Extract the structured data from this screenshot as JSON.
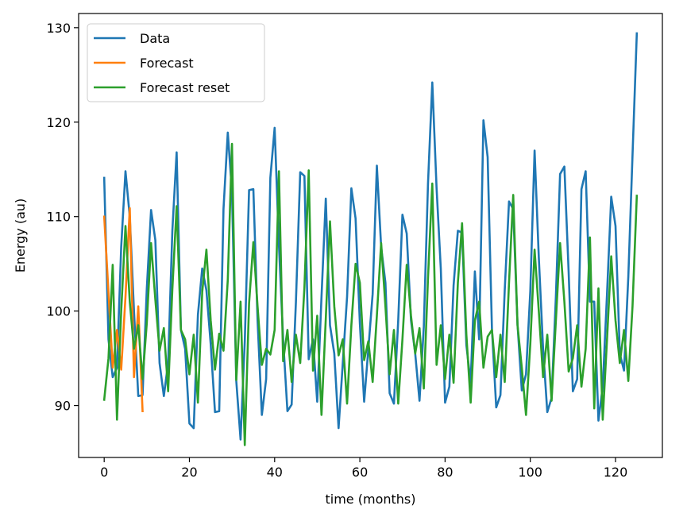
{
  "chart_data": {
    "type": "line",
    "xlabel": "time (months)",
    "ylabel": "Energy (au)",
    "xlim": [
      -6,
      131
    ],
    "ylim": [
      84.5,
      131.5
    ],
    "xticks": [
      0,
      20,
      40,
      60,
      80,
      100,
      120
    ],
    "yticks": [
      90,
      100,
      110,
      120,
      130
    ],
    "legend_position": "top-left",
    "grid": false,
    "series": [
      {
        "name": "Data",
        "color": "#1f77b4",
        "x": [
          0,
          1,
          2,
          3,
          4,
          5,
          6,
          7,
          8,
          9,
          10,
          11,
          12,
          13,
          14,
          15,
          16,
          17,
          18,
          19,
          20,
          21,
          22,
          23,
          24,
          25,
          26,
          27,
          28,
          29,
          30,
          31,
          32,
          33,
          34,
          35,
          36,
          37,
          38,
          39,
          40,
          41,
          42,
          43,
          44,
          45,
          46,
          47,
          48,
          49,
          50,
          51,
          52,
          53,
          54,
          55,
          56,
          57,
          58,
          59,
          60,
          61,
          62,
          63,
          64,
          65,
          66,
          67,
          68,
          69,
          70,
          71,
          72,
          73,
          74,
          75,
          76,
          77,
          78,
          79,
          80,
          81,
          82,
          83,
          84,
          85,
          86,
          87,
          88,
          89,
          90,
          91,
          92,
          93,
          94,
          95,
          96,
          97,
          98,
          99,
          100,
          101,
          102,
          103,
          104,
          105,
          106,
          107,
          108,
          109,
          110,
          111,
          112,
          113,
          114,
          115,
          116,
          117,
          118,
          119,
          120,
          121,
          122,
          123,
          124,
          125
        ],
        "y": [
          114.1,
          97.0,
          93.0,
          94.0,
          106.8,
          114.8,
          110.0,
          100.0,
          91.0,
          91.1,
          102.3,
          110.7,
          107.5,
          94.5,
          91.0,
          94.5,
          108.5,
          116.8,
          98.0,
          96.0,
          88.1,
          87.6,
          99.6,
          104.5,
          102.2,
          96.5,
          89.3,
          89.4,
          110.8,
          118.9,
          112.6,
          92.6,
          86.4,
          96.8,
          112.8,
          112.9,
          99.0,
          89.0,
          92.8,
          114.1,
          119.4,
          107.0,
          97.0,
          89.4,
          90.1,
          101.0,
          114.7,
          114.3,
          94.9,
          97.0,
          90.4,
          101.5,
          111.9,
          98.5,
          95.5,
          87.6,
          94.5,
          101.5,
          113.0,
          109.8,
          98.7,
          90.4,
          96.0,
          101.8,
          115.4,
          106.8,
          103.0,
          91.3,
          90.2,
          99.0,
          110.2,
          108.2,
          99.0,
          95.5,
          90.5,
          98.3,
          113.5,
          124.2,
          113.0,
          104.5,
          90.3,
          92.0,
          102.7,
          108.5,
          108.3,
          96.4,
          92.4,
          104.2,
          97.0,
          120.2,
          116.3,
          98.1,
          89.8,
          91.1,
          102.2,
          111.6,
          110.8,
          98.6,
          91.6,
          93.3,
          102.1,
          117.0,
          105.7,
          96.0,
          89.3,
          90.8,
          101.5,
          114.5,
          115.3,
          104.1,
          91.5,
          92.8,
          112.9,
          114.8,
          101.0,
          101.0,
          88.4,
          92.0,
          101.8,
          112.1,
          109.0,
          95.5,
          93.7,
          103.6,
          116.5,
          129.4
        ]
      },
      {
        "name": "Forecast",
        "color": "#ff7f0e",
        "x": [
          0,
          1,
          2,
          3,
          4,
          5,
          6,
          7,
          8,
          9
        ],
        "y": [
          110.0,
          102.0,
          94.0,
          98.0,
          93.8,
          101.5,
          110.9,
          93.0,
          100.5,
          89.4
        ]
      },
      {
        "name": "Forecast reset",
        "color": "#2ca02c",
        "x": [
          0,
          1,
          2,
          3,
          4,
          5,
          6,
          7,
          8,
          9,
          10,
          11,
          12,
          13,
          14,
          15,
          16,
          17,
          18,
          19,
          20,
          21,
          22,
          23,
          24,
          25,
          26,
          27,
          28,
          29,
          30,
          31,
          32,
          33,
          34,
          35,
          36,
          37,
          38,
          39,
          40,
          41,
          42,
          43,
          44,
          45,
          46,
          47,
          48,
          49,
          50,
          51,
          52,
          53,
          54,
          55,
          56,
          57,
          58,
          59,
          60,
          61,
          62,
          63,
          64,
          65,
          66,
          67,
          68,
          69,
          70,
          71,
          72,
          73,
          74,
          75,
          76,
          77,
          78,
          79,
          80,
          81,
          82,
          83,
          84,
          85,
          86,
          87,
          88,
          89,
          90,
          91,
          92,
          93,
          94,
          95,
          96,
          97,
          98,
          99,
          100,
          101,
          102,
          103,
          104,
          105,
          106,
          107,
          108,
          109,
          110,
          111,
          112,
          113,
          114,
          115,
          116,
          117,
          118,
          119,
          120,
          121,
          122,
          123,
          124,
          125
        ],
        "y": [
          90.6,
          95.0,
          104.9,
          88.5,
          100.0,
          109.0,
          101.0,
          96.0,
          98.5,
          92.8,
          98.7,
          107.2,
          101.2,
          95.8,
          98.2,
          91.5,
          102.3,
          111.1,
          98.0,
          97.0,
          93.3,
          97.5,
          90.3,
          102.0,
          106.5,
          99.0,
          93.8,
          97.6,
          95.8,
          103.3,
          117.7,
          92.7,
          101.0,
          85.8,
          100.8,
          107.3,
          100.5,
          94.3,
          96.0,
          95.4,
          98.0,
          114.8,
          94.7,
          98.0,
          92.5,
          97.5,
          94.5,
          102.5,
          114.9,
          93.7,
          99.5,
          89.0,
          99.2,
          109.5,
          100.5,
          95.3,
          97.0,
          90.2,
          98.5,
          105.0,
          103.0,
          94.8,
          96.8,
          92.5,
          99.5,
          107.2,
          100.5,
          93.3,
          98.0,
          90.2,
          97.0,
          104.9,
          99.5,
          95.5,
          98.2,
          91.8,
          103.5,
          113.5,
          94.3,
          98.5,
          92.8,
          97.5,
          92.4,
          103.0,
          109.3,
          97.5,
          90.3,
          99.0,
          101.0,
          94.0,
          97.3,
          98.0,
          93.0,
          97.5,
          92.5,
          103.0,
          112.3,
          98.5,
          94.0,
          89.0,
          96.5,
          106.5,
          100.0,
          93.0,
          97.5,
          90.5,
          99.0,
          107.2,
          101.0,
          93.6,
          95.0,
          98.5,
          92.0,
          96.0,
          107.8,
          89.7,
          102.4,
          88.5,
          97.0,
          105.8,
          99.0,
          94.5,
          98.0,
          92.6,
          100.5,
          112.2
        ]
      }
    ]
  }
}
